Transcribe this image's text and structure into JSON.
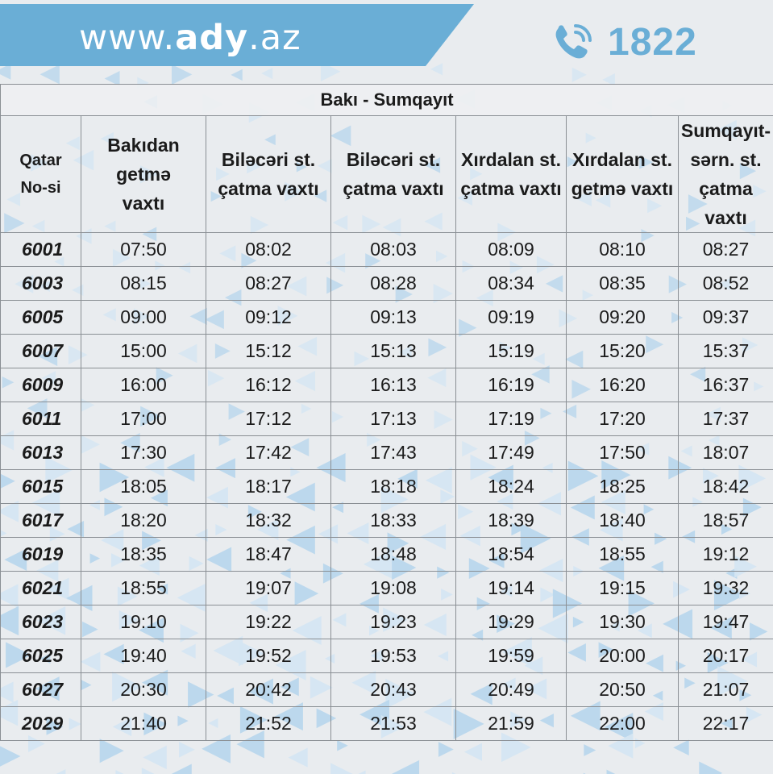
{
  "header": {
    "url_prefix": "www.",
    "url_brand": "ady",
    "url_suffix": ".az",
    "hotline": "1822",
    "hotline_icon": "phone-icon"
  },
  "colors": {
    "accent": "#6aaed6",
    "banner": "#6aaed6",
    "pattern_light": "#d5e6f2",
    "pattern_mid": "#b9d7ec"
  },
  "route": {
    "title": "Bakı - Sumqayıt"
  },
  "columns": [
    "Qatar\nNo-si",
    "Bakıdan\ngetmə\nvaxtı",
    "Biləcəri st.\nçatma vaxtı",
    "Biləcəri st.\nçatma vaxtı",
    "Xırdalan st.\nçatma vaxtı",
    "Xırdalan st.\ngetmə vaxtı",
    "Sumqayıt-\nsərn. st.\nçatma vaxtı"
  ],
  "rows": [
    {
      "train": "6001",
      "times": [
        "07:50",
        "08:02",
        "08:03",
        "08:09",
        "08:10",
        "08:27"
      ]
    },
    {
      "train": "6003",
      "times": [
        "08:15",
        "08:27",
        "08:28",
        "08:34",
        "08:35",
        "08:52"
      ]
    },
    {
      "train": "6005",
      "times": [
        "09:00",
        "09:12",
        "09:13",
        "09:19",
        "09:20",
        "09:37"
      ]
    },
    {
      "train": "6007",
      "times": [
        "15:00",
        "15:12",
        "15:13",
        "15:19",
        "15:20",
        "15:37"
      ]
    },
    {
      "train": "6009",
      "times": [
        "16:00",
        "16:12",
        "16:13",
        "16:19",
        "16:20",
        "16:37"
      ]
    },
    {
      "train": "6011",
      "times": [
        "17:00",
        "17:12",
        "17:13",
        "17:19",
        "17:20",
        "17:37"
      ]
    },
    {
      "train": "6013",
      "times": [
        "17:30",
        "17:42",
        "17:43",
        "17:49",
        "17:50",
        "18:07"
      ]
    },
    {
      "train": "6015",
      "times": [
        "18:05",
        "18:17",
        "18:18",
        "18:24",
        "18:25",
        "18:42"
      ]
    },
    {
      "train": "6017",
      "times": [
        "18:20",
        "18:32",
        "18:33",
        "18:39",
        "18:40",
        "18:57"
      ]
    },
    {
      "train": "6019",
      "times": [
        "18:35",
        "18:47",
        "18:48",
        "18:54",
        "18:55",
        "19:12"
      ]
    },
    {
      "train": "6021",
      "times": [
        "18:55",
        "19:07",
        "19:08",
        "19:14",
        "19:15",
        "19:32"
      ]
    },
    {
      "train": "6023",
      "times": [
        "19:10",
        "19:22",
        "19:23",
        "19:29",
        "19:30",
        "19:47"
      ]
    },
    {
      "train": "6025",
      "times": [
        "19:40",
        "19:52",
        "19:53",
        "19:59",
        "20:00",
        "20:17"
      ]
    },
    {
      "train": "6027",
      "times": [
        "20:30",
        "20:42",
        "20:43",
        "20:49",
        "20:50",
        "21:07"
      ]
    },
    {
      "train": "2029",
      "times": [
        "21:40",
        "21:52",
        "21:53",
        "21:59",
        "22:00",
        "22:17"
      ]
    }
  ]
}
